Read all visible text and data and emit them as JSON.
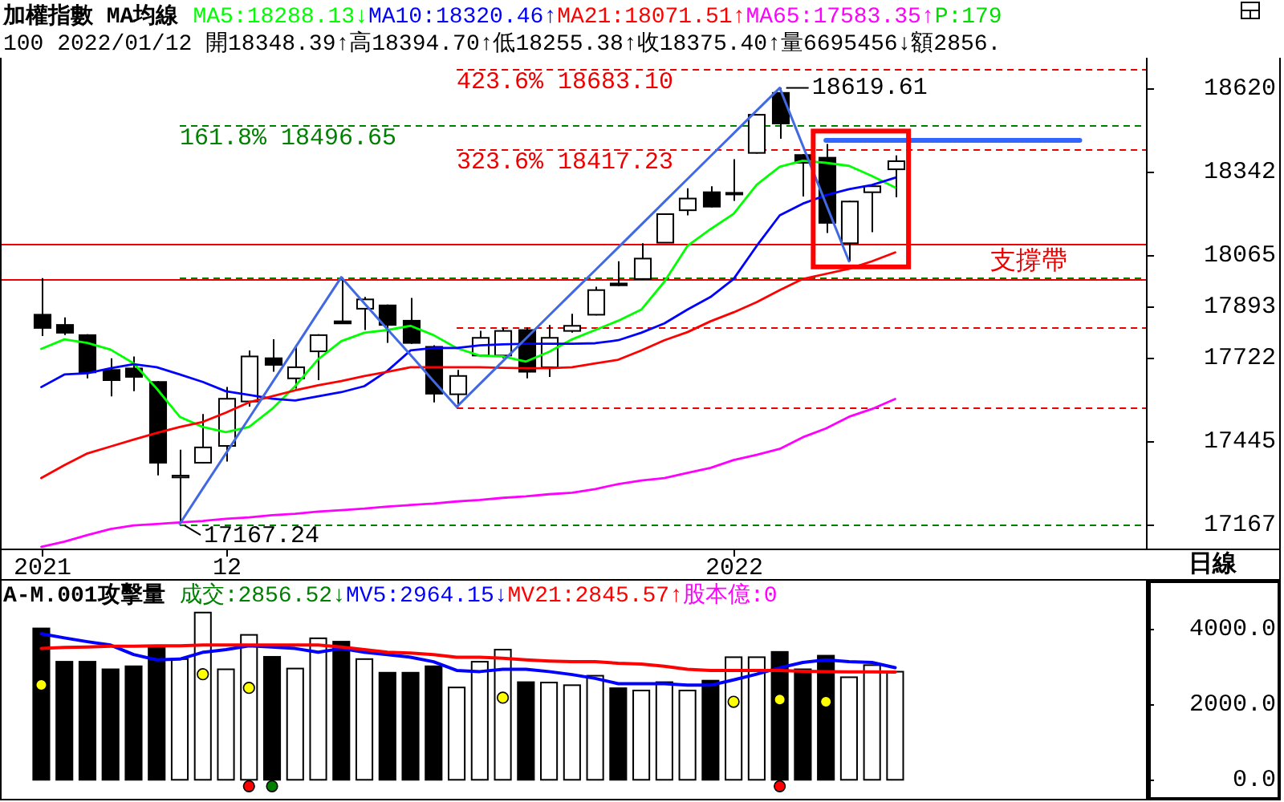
{
  "chart_data": [
    {
      "type": "candlestick",
      "title": "加權指數 MA均線",
      "subtitle": "100 2022/01/12 開18348.39↑高18394.70↑低18255.38↑收18375.40↑量6695456↓額2856.",
      "categories": [
        "2021",
        null,
        null,
        null,
        null,
        null,
        null,
        null,
        "12",
        null,
        null,
        null,
        null,
        null,
        null,
        null,
        null,
        null,
        null,
        null,
        null,
        null,
        null,
        null,
        null,
        null,
        null,
        null,
        null,
        null,
        "2022",
        null,
        null,
        null,
        null,
        null,
        null,
        null,
        null,
        null,
        null,
        null,
        null,
        null,
        null,
        null,
        null,
        null
      ],
      "ohlc": [
        [
          17864,
          17986,
          17793,
          17820
        ],
        [
          17830,
          17855,
          17796,
          17804
        ],
        [
          17796,
          17799,
          17652,
          17672
        ],
        [
          17680,
          17719,
          17592,
          17646
        ],
        [
          17685,
          17725,
          17609,
          17657
        ],
        [
          17640,
          17643,
          17329,
          17371
        ],
        [
          17322,
          17414,
          17167.24,
          17328
        ],
        [
          17371,
          17533,
          17368,
          17422
        ],
        [
          17427,
          17623,
          17375,
          17584
        ],
        [
          17575,
          17745,
          17558,
          17725
        ],
        [
          17719,
          17782,
          17674,
          17697
        ],
        [
          17652,
          17762,
          17618,
          17689
        ],
        [
          17742,
          17799,
          17646,
          17796
        ],
        [
          17842,
          17988.88,
          17833,
          17835
        ],
        [
          17884,
          17923,
          17813,
          17915
        ],
        [
          17895,
          17898,
          17770,
          17830
        ],
        [
          17844,
          17920,
          17767,
          17770
        ],
        [
          17757,
          17762,
          17572,
          17601
        ],
        [
          17599,
          17680,
          17557,
          17660
        ],
        [
          17728,
          17810,
          17725,
          17787
        ],
        [
          17728,
          17821,
          17719,
          17810
        ],
        [
          17813,
          17821,
          17652,
          17674
        ],
        [
          17689,
          17830,
          17657,
          17787
        ],
        [
          17810,
          17867,
          17804,
          17827
        ],
        [
          17864,
          17957,
          17862,
          17946
        ],
        [
          17968,
          18042,
          17959,
          17962
        ],
        [
          17983,
          18102,
          17980,
          18051
        ],
        [
          18104,
          18200,
          18104,
          18199
        ],
        [
          18212,
          18285,
          18195,
          18251
        ],
        [
          18272,
          18292,
          18222,
          18224
        ],
        [
          18265,
          18382,
          18243,
          18270
        ],
        [
          18403,
          18532,
          18401,
          18530
        ],
        [
          18603,
          18619.61,
          18450,
          18501
        ],
        [
          18396,
          18399,
          18258,
          18370
        ],
        [
          18387,
          18433,
          18136,
          18170
        ],
        [
          18102,
          18243,
          18042,
          18241
        ],
        [
          18272,
          18294,
          18139,
          18292
        ],
        [
          18348.39,
          18394.7,
          18255.38,
          18375.4
        ],
        null,
        null,
        null,
        null,
        null,
        null,
        null,
        null,
        null,
        null
      ],
      "series": [
        {
          "name": "MA5:18288.13↓",
          "type": "line",
          "color": "#00ff00",
          "values": [
            17750,
            17782,
            17770,
            17748,
            17702,
            17618,
            17524,
            17490,
            17473,
            17490,
            17550,
            17626,
            17716,
            17776,
            17804,
            17813,
            17827,
            17796,
            17753,
            17728,
            17725,
            17708,
            17740,
            17782,
            17813,
            17844,
            17881,
            17974,
            18093,
            18149,
            18200,
            18297,
            18357,
            18377,
            18370,
            18360,
            18326,
            18288.13,
            null,
            null,
            null,
            null,
            null,
            null,
            null,
            null,
            null,
            null
          ]
        },
        {
          "name": "MA10:18320.46↑",
          "type": "line",
          "color": "#0000ff",
          "values": [
            17623,
            17665,
            17669,
            17686,
            17699,
            17689,
            17665,
            17640,
            17609,
            17597,
            17584,
            17578,
            17592,
            17606,
            17626,
            17677,
            17745,
            17753,
            17753,
            17762,
            17765,
            17767,
            17767,
            17767,
            17769,
            17779,
            17804,
            17835,
            17881,
            17923,
            17983,
            18093,
            18195,
            18234,
            18262,
            18282,
            18296,
            18320.46,
            null,
            null,
            null,
            null,
            null,
            null,
            null,
            null,
            null,
            null
          ]
        },
        {
          "name": "MA21:18071.51↑",
          "type": "line",
          "color": "#ff0000",
          "values": [
            17320,
            17363,
            17402,
            17425,
            17448,
            17470,
            17490,
            17507,
            17538,
            17572,
            17592,
            17612,
            17629,
            17643,
            17660,
            17674,
            17689,
            17689,
            17689,
            17689,
            17687,
            17686,
            17686,
            17689,
            17702,
            17714,
            17745,
            17779,
            17806,
            17842,
            17872,
            17906,
            17946,
            17983,
            18000,
            18017,
            18042,
            18071.51,
            null,
            null,
            null,
            null,
            null,
            null,
            null,
            null,
            null,
            null
          ]
        },
        {
          "name": "MA65:17583.35↑",
          "type": "line",
          "color": "#ff00ff",
          "values": [
            17091,
            17108,
            17130,
            17150,
            17162,
            17167,
            17172,
            17177,
            17184,
            17189,
            17196,
            17201,
            17208,
            17213,
            17218,
            17225,
            17230,
            17235,
            17242,
            17247,
            17254,
            17259,
            17266,
            17271,
            17283,
            17300,
            17312,
            17320,
            17337,
            17354,
            17380,
            17397,
            17417,
            17456,
            17485,
            17524,
            17550,
            17583.35,
            null,
            null,
            null,
            null,
            null,
            null,
            null,
            null,
            null,
            null
          ]
        },
        {
          "type": "line",
          "color": "#4169e1",
          "values": [
            null,
            null,
            null,
            null,
            null,
            null,
            17167.24,
            17285,
            17402,
            17519,
            17637,
            17754,
            17872,
            17988.88,
            17902,
            17816,
            17730,
            17643,
            17557,
            17633,
            17709,
            17785,
            17861,
            17937,
            18012,
            18088,
            18164,
            18240,
            18316,
            18392,
            18468,
            18544,
            18619.61,
            18427,
            18234,
            18042,
            null,
            null,
            null,
            null,
            null,
            null,
            null,
            null,
            null,
            null,
            null,
            null
          ]
        },
        {
          "type": "line",
          "color": "#3366ff",
          "values": [
            null,
            null,
            null,
            null,
            null,
            null,
            null,
            null,
            null,
            null,
            null,
            null,
            null,
            null,
            null,
            null,
            null,
            null,
            null,
            null,
            null,
            null,
            null,
            null,
            null,
            null,
            null,
            null,
            null,
            null,
            null,
            null,
            null,
            null,
            18445,
            18445,
            18445,
            18445,
            18445,
            18445,
            18445,
            18445,
            18445,
            18445,
            18445,
            18445,
            null,
            null
          ]
        }
      ],
      "ref_lines": [
        {
          "axis": "y",
          "value": 17167.24,
          "color": "#008000",
          "line_style": "dashed"
        },
        {
          "axis": "y",
          "value": 17988.88,
          "color": "#008000",
          "line_style": "dashed"
        },
        {
          "axis": "y",
          "value": 18496.65,
          "color": "#008000",
          "line_style": "dashed",
          "label": "161.8% 18496.65"
        },
        {
          "axis": "y",
          "value": 17557,
          "color": "#ee0000",
          "line_style": "dashed"
        },
        {
          "axis": "y",
          "value": 17823,
          "color": "#ee0000",
          "line_style": "dashed"
        },
        {
          "axis": "y",
          "value": 18417.23,
          "color": "#ee0000",
          "line_style": "dashed",
          "label": "323.6% 18417.23"
        },
        {
          "axis": "y",
          "value": 18683.1,
          "color": "#ee0000",
          "line_style": "dashed",
          "label": "423.6% 18683.10"
        },
        {
          "axis": "y",
          "value": 17983,
          "color": "#ee0000",
          "line_style": "solid"
        },
        {
          "axis": "y",
          "value": 18102,
          "color": "#ee0000",
          "line_style": "solid",
          "label": "支撐帶"
        }
      ],
      "annotations": [
        "P:179",
        "日線",
        "18619.61",
        "17167.24"
      ],
      "ylim": [
        17085,
        18720
      ],
      "yticks": [
        18620,
        18342,
        18065,
        17893,
        17722,
        17445,
        17167
      ],
      "legend": "top left"
    },
    {
      "type": "bar",
      "title": "A-M.001攻擊量",
      "subtitle": "成交:2856.52↓",
      "categories": [
        null,
        null,
        null,
        null,
        null,
        null,
        null,
        null,
        null,
        null,
        null,
        null,
        null,
        null,
        null,
        null,
        null,
        null,
        null,
        null,
        null,
        null,
        null,
        null,
        null,
        null,
        null,
        null,
        null,
        null,
        null,
        null,
        null,
        null,
        null,
        null,
        null,
        null,
        null,
        null,
        null,
        null,
        null,
        null,
        null,
        null,
        null,
        null
      ],
      "series": [
        {
          "colors": [
            "#000000",
            "#000000",
            "#000000",
            "#000000",
            "#000000",
            "#000000",
            "#ffffff",
            "#ffffff",
            "#ffffff",
            "#ffffff",
            "#000000",
            "#ffffff",
            "#ffffff",
            "#000000",
            "#ffffff",
            "#000000",
            "#000000",
            "#000000",
            "#ffffff",
            "#ffffff",
            "#ffffff",
            "#000000",
            "#ffffff",
            "#ffffff",
            "#ffffff",
            "#000000",
            "#ffffff",
            "#ffffff",
            "#ffffff",
            "#000000",
            "#ffffff",
            "#ffffff",
            "#000000",
            "#000000",
            "#000000",
            "#ffffff",
            "#ffffff",
            "#ffffff",
            null,
            null,
            null,
            null,
            null,
            null,
            null,
            null,
            null,
            null
          ],
          "values": [
            4000,
            3120,
            3120,
            2920,
            3000,
            3510,
            3190,
            4420,
            2920,
            3830,
            3250,
            2940,
            3740,
            3650,
            3190,
            2830,
            2830,
            3000,
            2440,
            3120,
            3440,
            2580,
            2570,
            2500,
            2750,
            2420,
            2360,
            2580,
            2360,
            2620,
            3240,
            3240,
            3380,
            2920,
            3280,
            2710,
            3030,
            2856.52,
            null,
            null,
            null,
            null,
            null,
            null,
            null,
            null,
            null,
            null
          ]
        },
        {
          "name": "MV5:2964.15↓",
          "type": "line",
          "color": "#0000ff",
          "values": [
            3860,
            3750,
            3650,
            3560,
            3310,
            3170,
            3190,
            3370,
            3440,
            3540,
            3510,
            3470,
            3370,
            3470,
            3370,
            3310,
            3240,
            3120,
            2890,
            2860,
            2920,
            2920,
            2860,
            2780,
            2680,
            2540,
            2540,
            2540,
            2500,
            2500,
            2640,
            2790,
            2960,
            3100,
            3170,
            3120,
            3100,
            2964.15,
            null,
            null,
            null,
            null,
            null,
            null,
            null,
            null,
            null,
            null
          ]
        },
        {
          "name": "MV21:2845.57↑",
          "type": "line",
          "color": "#ff0000",
          "values": [
            3470,
            3500,
            3510,
            3530,
            3530,
            3540,
            3540,
            3560,
            3560,
            3560,
            3560,
            3560,
            3560,
            3510,
            3440,
            3370,
            3350,
            3310,
            3240,
            3240,
            3210,
            3170,
            3140,
            3120,
            3120,
            3080,
            3060,
            3000,
            2920,
            2890,
            2890,
            2890,
            2890,
            2870,
            2860,
            2850,
            2850,
            2845.57,
            null,
            null,
            null,
            null,
            null,
            null,
            null,
            null,
            null,
            null
          ]
        },
        {
          "type": "scatter",
          "color": "#ffff00",
          "marker": "circle",
          "values": [
            2510,
            null,
            null,
            null,
            null,
            null,
            null,
            2790,
            null,
            2430,
            null,
            null,
            null,
            null,
            null,
            null,
            null,
            null,
            null,
            null,
            2170,
            null,
            null,
            null,
            null,
            null,
            null,
            null,
            null,
            null,
            2060,
            null,
            2120,
            null,
            2060,
            null,
            null,
            null,
            null,
            null,
            null,
            null,
            null,
            null,
            null,
            null,
            null,
            null
          ]
        },
        {
          "type": "scatter",
          "color": "#ff0000",
          "marker": "circle",
          "values": [
            null,
            null,
            null,
            null,
            null,
            null,
            null,
            null,
            null,
            -170,
            null,
            null,
            null,
            null,
            null,
            null,
            null,
            null,
            null,
            null,
            null,
            null,
            null,
            null,
            null,
            null,
            null,
            null,
            null,
            null,
            null,
            null,
            -170,
            null,
            null,
            null,
            null,
            null,
            null,
            null,
            null,
            null,
            null,
            null,
            null,
            null,
            null,
            null
          ]
        },
        {
          "type": "scatter",
          "color": "#008000",
          "marker": "circle",
          "values": [
            null,
            null,
            null,
            null,
            null,
            null,
            null,
            null,
            null,
            null,
            -170,
            null,
            null,
            null,
            null,
            null,
            null,
            null,
            null,
            null,
            null,
            null,
            null,
            null,
            null,
            null,
            null,
            null,
            null,
            null,
            null,
            null,
            null,
            null,
            null,
            null,
            null,
            null,
            null,
            null,
            null,
            null,
            null,
            null,
            null,
            null,
            null,
            null
          ]
        }
      ],
      "annotations": [
        "股本億:0"
      ],
      "ylim": [
        -460,
        4500
      ],
      "yticks": [
        {
          "value": 0,
          "label": "0.0"
        },
        {
          "value": 1000,
          "label": null
        },
        {
          "value": 2000,
          "label": "2000.0"
        },
        {
          "value": 3000,
          "label": null
        },
        {
          "value": 4000,
          "label": "4000.0"
        }
      ],
      "tick_labels": "y",
      "legend": "top left"
    }
  ]
}
